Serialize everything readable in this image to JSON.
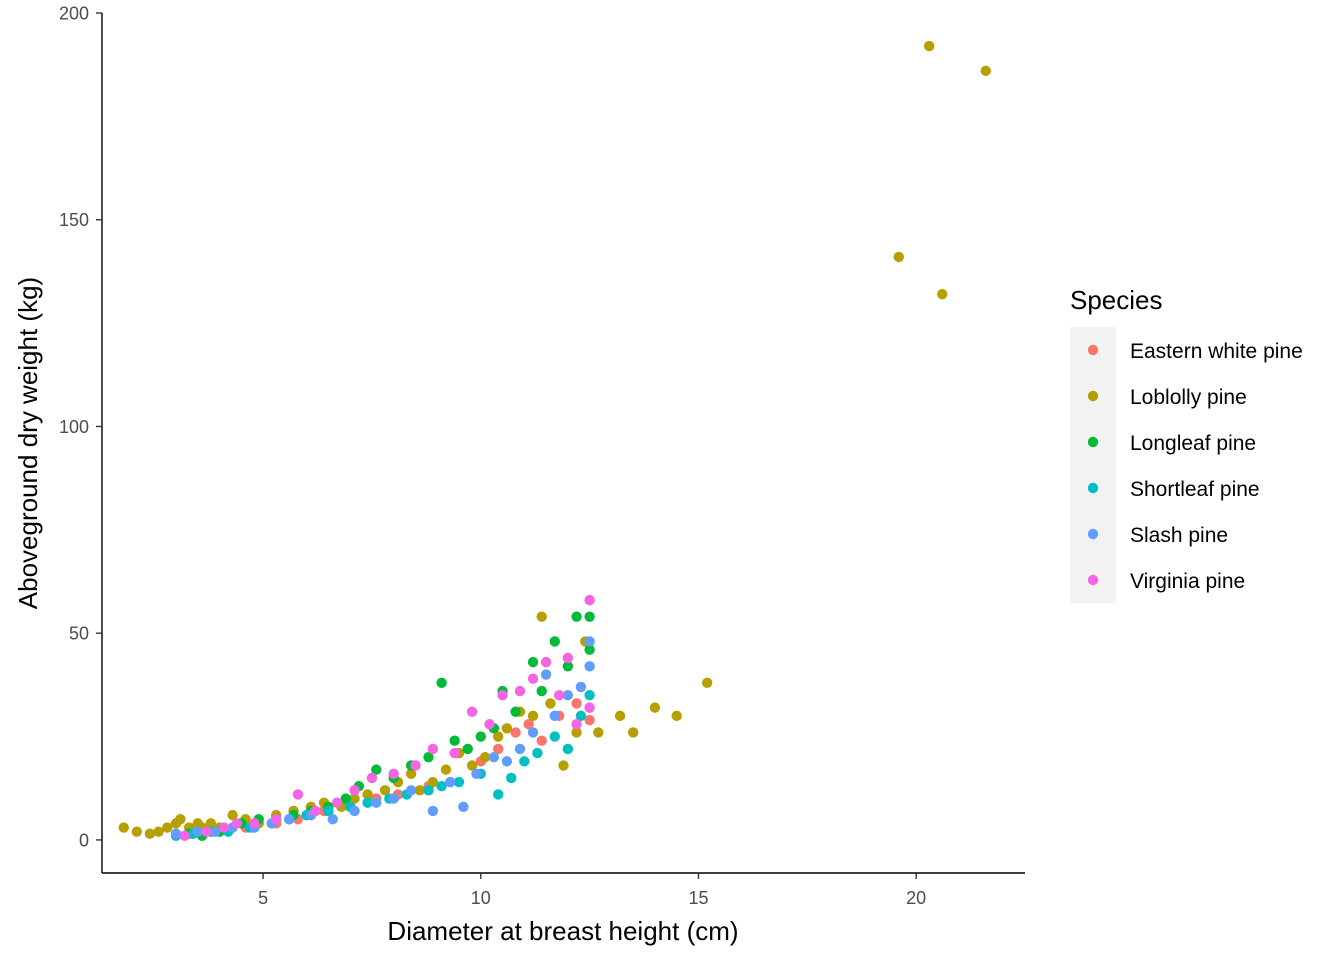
{
  "chart_data": {
    "type": "scatter",
    "title": "",
    "xlabel": "Diameter at breast height (cm)",
    "ylabel": "Aboveground dry weight (kg)",
    "xlim": [
      1.3,
      22.5
    ],
    "ylim": [
      -8,
      200
    ],
    "x_ticks": [
      5,
      10,
      15,
      20
    ],
    "y_ticks": [
      0,
      50,
      100,
      150,
      200
    ],
    "grid": false,
    "legend": {
      "title": "Species",
      "position": "right"
    },
    "series": [
      {
        "name": "Eastern white pine",
        "color": "#F8766D",
        "points": [
          [
            3.8,
            2
          ],
          [
            4.6,
            3
          ],
          [
            5.3,
            4
          ],
          [
            5.8,
            5
          ],
          [
            6.4,
            7
          ],
          [
            7.0,
            8
          ],
          [
            7.6,
            10
          ],
          [
            8.1,
            11
          ],
          [
            8.8,
            13
          ],
          [
            9.3,
            14
          ],
          [
            10.0,
            19
          ],
          [
            10.4,
            22
          ],
          [
            10.8,
            26
          ],
          [
            11.1,
            28
          ],
          [
            11.4,
            24
          ],
          [
            11.8,
            30
          ],
          [
            12.2,
            33
          ],
          [
            12.5,
            29
          ]
        ]
      },
      {
        "name": "Loblolly pine",
        "color": "#B79F00",
        "points": [
          [
            1.8,
            3
          ],
          [
            2.1,
            2
          ],
          [
            2.4,
            1.5
          ],
          [
            2.6,
            2
          ],
          [
            2.8,
            3
          ],
          [
            3.0,
            4
          ],
          [
            3.1,
            5
          ],
          [
            3.3,
            3
          ],
          [
            3.5,
            4
          ],
          [
            3.6,
            3
          ],
          [
            3.8,
            4
          ],
          [
            4.0,
            3
          ],
          [
            4.3,
            6
          ],
          [
            4.6,
            5
          ],
          [
            4.9,
            4
          ],
          [
            5.3,
            6
          ],
          [
            5.7,
            7
          ],
          [
            6.1,
            8
          ],
          [
            6.4,
            9
          ],
          [
            6.8,
            8
          ],
          [
            7.1,
            10
          ],
          [
            7.4,
            11
          ],
          [
            7.8,
            12
          ],
          [
            8.1,
            14
          ],
          [
            8.4,
            16
          ],
          [
            8.6,
            12
          ],
          [
            8.9,
            14
          ],
          [
            9.2,
            17
          ],
          [
            9.5,
            21
          ],
          [
            9.8,
            18
          ],
          [
            10.1,
            20
          ],
          [
            10.4,
            25
          ],
          [
            10.6,
            27
          ],
          [
            10.9,
            31
          ],
          [
            11.2,
            30
          ],
          [
            11.4,
            54
          ],
          [
            11.6,
            33
          ],
          [
            11.9,
            18
          ],
          [
            12.2,
            26
          ],
          [
            12.4,
            48
          ],
          [
            12.7,
            26
          ],
          [
            13.2,
            30
          ],
          [
            13.5,
            26
          ],
          [
            14.0,
            32
          ],
          [
            14.5,
            30
          ],
          [
            15.2,
            38
          ],
          [
            19.6,
            141
          ],
          [
            20.3,
            192
          ],
          [
            20.6,
            132
          ],
          [
            21.6,
            186
          ]
        ]
      },
      {
        "name": "Longleaf pine",
        "color": "#00BA38",
        "points": [
          [
            3.3,
            1.5
          ],
          [
            3.6,
            1
          ],
          [
            4.0,
            2
          ],
          [
            4.5,
            4
          ],
          [
            4.9,
            5
          ],
          [
            5.3,
            5
          ],
          [
            5.7,
            6
          ],
          [
            6.1,
            7
          ],
          [
            6.5,
            8
          ],
          [
            6.9,
            10
          ],
          [
            7.2,
            13
          ],
          [
            7.6,
            17
          ],
          [
            8.0,
            15
          ],
          [
            8.4,
            18
          ],
          [
            8.8,
            20
          ],
          [
            9.1,
            38
          ],
          [
            9.4,
            24
          ],
          [
            9.7,
            22
          ],
          [
            10.0,
            25
          ],
          [
            10.3,
            27
          ],
          [
            10.5,
            36
          ],
          [
            10.8,
            31
          ],
          [
            11.2,
            43
          ],
          [
            11.4,
            36
          ],
          [
            11.7,
            48
          ],
          [
            12.0,
            42
          ],
          [
            12.2,
            54
          ],
          [
            12.5,
            46
          ],
          [
            12.5,
            54
          ]
        ]
      },
      {
        "name": "Shortleaf pine",
        "color": "#00BFC4",
        "points": [
          [
            3.0,
            1
          ],
          [
            3.4,
            1.5
          ],
          [
            3.8,
            2
          ],
          [
            4.2,
            2
          ],
          [
            4.7,
            3
          ],
          [
            5.2,
            4
          ],
          [
            5.6,
            5
          ],
          [
            6.0,
            6
          ],
          [
            6.5,
            7
          ],
          [
            7.0,
            8
          ],
          [
            7.4,
            9
          ],
          [
            7.9,
            10
          ],
          [
            8.3,
            11
          ],
          [
            8.8,
            12
          ],
          [
            9.1,
            13
          ],
          [
            9.5,
            14
          ],
          [
            10.0,
            16
          ],
          [
            10.4,
            11
          ],
          [
            10.7,
            15
          ],
          [
            11.0,
            19
          ],
          [
            11.3,
            21
          ],
          [
            11.7,
            25
          ],
          [
            12.0,
            22
          ],
          [
            12.3,
            30
          ],
          [
            12.5,
            35
          ]
        ]
      },
      {
        "name": "Slash pine",
        "color": "#619CFF",
        "points": [
          [
            3.0,
            1.5
          ],
          [
            3.5,
            2
          ],
          [
            3.9,
            2
          ],
          [
            4.3,
            3
          ],
          [
            4.8,
            3
          ],
          [
            5.2,
            4
          ],
          [
            5.6,
            5
          ],
          [
            6.1,
            6
          ],
          [
            6.6,
            5
          ],
          [
            7.1,
            7
          ],
          [
            7.6,
            9
          ],
          [
            8.0,
            10
          ],
          [
            8.4,
            12
          ],
          [
            8.9,
            7
          ],
          [
            9.3,
            14
          ],
          [
            9.6,
            8
          ],
          [
            9.9,
            16
          ],
          [
            10.3,
            20
          ],
          [
            10.6,
            19
          ],
          [
            10.9,
            22
          ],
          [
            11.2,
            26
          ],
          [
            11.5,
            40
          ],
          [
            11.7,
            30
          ],
          [
            12.0,
            35
          ],
          [
            12.3,
            37
          ],
          [
            12.5,
            42
          ],
          [
            12.5,
            48
          ]
        ]
      },
      {
        "name": "Virginia pine",
        "color": "#F564E3",
        "points": [
          [
            3.2,
            1
          ],
          [
            3.7,
            2
          ],
          [
            4.1,
            3
          ],
          [
            4.4,
            4
          ],
          [
            4.8,
            4
          ],
          [
            5.3,
            5
          ],
          [
            5.8,
            11
          ],
          [
            6.2,
            7
          ],
          [
            6.7,
            9
          ],
          [
            7.1,
            12
          ],
          [
            7.5,
            15
          ],
          [
            8.0,
            16
          ],
          [
            8.5,
            18
          ],
          [
            8.9,
            22
          ],
          [
            9.4,
            21
          ],
          [
            9.8,
            31
          ],
          [
            10.2,
            28
          ],
          [
            10.5,
            35
          ],
          [
            10.9,
            36
          ],
          [
            11.2,
            39
          ],
          [
            11.5,
            43
          ],
          [
            11.8,
            35
          ],
          [
            12.0,
            44
          ],
          [
            12.2,
            28
          ],
          [
            12.5,
            58
          ],
          [
            12.5,
            32
          ]
        ]
      }
    ]
  }
}
